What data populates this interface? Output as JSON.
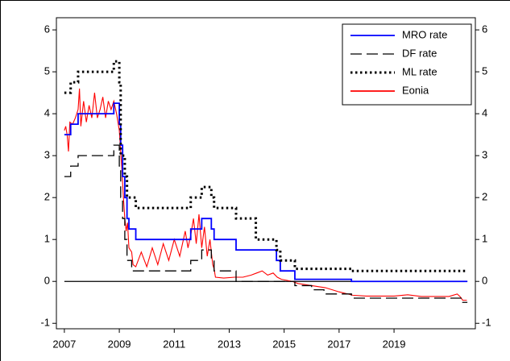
{
  "chart_data": {
    "type": "line",
    "xlim": [
      2006.71,
      2021.96
    ],
    "xticks": [
      2007,
      2009,
      2011,
      2013,
      2015,
      2017,
      2019
    ],
    "ylim": [
      -1.13,
      6.29
    ],
    "yticks": [
      -1,
      0,
      1,
      2,
      3,
      4,
      5,
      6
    ],
    "y2lim": [
      -1.13,
      6.29
    ],
    "y2ticks": [
      -1,
      0,
      1,
      2,
      3,
      4,
      5,
      6
    ],
    "reference_line": 0,
    "legend": "top-right",
    "series": [
      {
        "name": "MRO rate",
        "color": "#0000ff",
        "style": "solid",
        "x": [
          2007.0,
          2007.23,
          2007.23,
          2007.5,
          2007.5,
          2008.8,
          2008.8,
          2009.0,
          2009.0,
          2009.05,
          2009.05,
          2009.12,
          2009.12,
          2009.2,
          2009.2,
          2009.28,
          2009.28,
          2009.35,
          2009.35,
          2009.6,
          2009.6,
          2011.6,
          2011.6,
          2012.0,
          2012.0,
          2012.35,
          2012.35,
          2012.45,
          2012.45,
          2013.25,
          2013.25,
          2014.72,
          2014.72,
          2014.86,
          2014.86,
          2015.39,
          2015.39,
          2017.45,
          2017.45,
          2021.67
        ],
        "values": [
          3.5,
          3.5,
          3.75,
          3.75,
          4.0,
          4.0,
          4.25,
          4.25,
          3.75,
          3.75,
          3.25,
          3.25,
          2.5,
          2.5,
          2.0,
          2.0,
          1.5,
          1.5,
          1.25,
          1.25,
          1.0,
          1.0,
          1.25,
          1.25,
          1.5,
          1.5,
          1.25,
          1.25,
          1.0,
          1.0,
          0.75,
          0.75,
          0.5,
          0.5,
          0.25,
          0.25,
          0.05,
          0.05,
          0.0,
          0.0
        ]
      },
      {
        "name": "DF rate",
        "color": "#000000",
        "style": "dashed",
        "x": [
          2007.0,
          2007.23,
          2007.23,
          2007.5,
          2007.5,
          2008.8,
          2008.8,
          2009.0,
          2009.0,
          2009.05,
          2009.05,
          2009.12,
          2009.12,
          2009.2,
          2009.2,
          2009.28,
          2009.28,
          2009.45,
          2009.45,
          2011.6,
          2011.6,
          2012.0,
          2012.0,
          2012.35,
          2012.35,
          2012.45,
          2012.45,
          2013.25,
          2013.25,
          2015.39,
          2015.39,
          2016.0,
          2016.0,
          2016.45,
          2016.45,
          2017.45,
          2017.45,
          2021.5,
          2021.5,
          2021.67
        ],
        "values": [
          2.5,
          2.5,
          2.75,
          2.75,
          3.0,
          3.0,
          3.25,
          3.25,
          2.75,
          2.75,
          2.0,
          2.0,
          1.5,
          1.5,
          1.0,
          1.0,
          0.5,
          0.5,
          0.25,
          0.25,
          0.5,
          0.5,
          0.75,
          0.75,
          0.5,
          0.5,
          0.25,
          0.25,
          0.0,
          0.0,
          -0.1,
          -0.1,
          -0.2,
          -0.2,
          -0.3,
          -0.3,
          -0.4,
          -0.4,
          -0.5,
          -0.5
        ]
      },
      {
        "name": "ML rate",
        "color": "#000000",
        "style": "dotted",
        "x": [
          2007.0,
          2007.23,
          2007.23,
          2007.5,
          2007.5,
          2008.8,
          2008.8,
          2009.0,
          2009.0,
          2009.05,
          2009.05,
          2009.2,
          2009.2,
          2009.28,
          2009.28,
          2009.35,
          2009.35,
          2009.6,
          2009.6,
          2011.6,
          2011.6,
          2012.0,
          2012.0,
          2012.35,
          2012.35,
          2012.45,
          2012.45,
          2013.25,
          2013.25,
          2013.97,
          2013.97,
          2014.72,
          2014.72,
          2014.86,
          2014.86,
          2015.39,
          2015.39,
          2017.45,
          2017.45,
          2021.67
        ],
        "values": [
          4.5,
          4.5,
          4.75,
          4.75,
          5.0,
          5.0,
          5.25,
          5.25,
          4.75,
          4.75,
          3.0,
          3.0,
          2.5,
          2.5,
          2.0,
          2.0,
          2.0,
          2.0,
          1.75,
          1.75,
          2.0,
          2.0,
          2.25,
          2.25,
          2.0,
          2.0,
          1.75,
          1.75,
          1.5,
          1.5,
          1.0,
          1.0,
          0.75,
          0.75,
          0.5,
          0.5,
          0.3,
          0.3,
          0.25,
          0.25
        ]
      },
      {
        "name": "Eonia",
        "color": "#ff0000",
        "style": "solid",
        "x": [
          2007.0,
          2007.05,
          2007.1,
          2007.15,
          2007.2,
          2007.3,
          2007.4,
          2007.5,
          2007.55,
          2007.6,
          2007.7,
          2007.8,
          2007.9,
          2008.0,
          2008.1,
          2008.2,
          2008.3,
          2008.4,
          2008.5,
          2008.6,
          2008.7,
          2008.8,
          2008.9,
          2009.0,
          2009.05,
          2009.1,
          2009.15,
          2009.2,
          2009.25,
          2009.3,
          2009.35,
          2009.45,
          2009.5,
          2009.6,
          2009.8,
          2010.0,
          2010.2,
          2010.4,
          2010.6,
          2010.8,
          2011.0,
          2011.2,
          2011.4,
          2011.5,
          2011.6,
          2011.7,
          2011.8,
          2011.9,
          2012.0,
          2012.1,
          2012.2,
          2012.3,
          2012.4,
          2012.45,
          2012.5,
          2012.8,
          2013.2,
          2013.5,
          2013.8,
          2014.0,
          2014.2,
          2014.4,
          2014.6,
          2014.75,
          2014.9,
          2015.3,
          2015.5,
          2016.0,
          2016.5,
          2017.0,
          2017.5,
          2018.0,
          2019.0,
          2019.5,
          2020.0,
          2021.0,
          2021.3,
          2021.4,
          2021.5,
          2021.65
        ],
        "values": [
          3.6,
          3.7,
          3.5,
          3.1,
          3.8,
          3.75,
          3.9,
          4.1,
          4.6,
          3.7,
          4.3,
          3.8,
          4.2,
          3.9,
          4.5,
          3.9,
          4.1,
          4.4,
          3.9,
          4.3,
          4.1,
          4.3,
          4.0,
          3.6,
          3.1,
          2.6,
          2.0,
          1.5,
          1.2,
          1.4,
          0.8,
          0.7,
          0.4,
          0.35,
          0.7,
          0.35,
          0.8,
          0.4,
          0.9,
          0.5,
          1.0,
          0.6,
          1.2,
          0.8,
          1.1,
          1.5,
          0.9,
          1.6,
          0.8,
          1.3,
          0.6,
          1.0,
          0.4,
          0.3,
          0.1,
          0.08,
          0.1,
          0.1,
          0.15,
          0.2,
          0.25,
          0.15,
          0.2,
          0.1,
          0.05,
          0.0,
          -0.05,
          -0.1,
          -0.15,
          -0.25,
          -0.33,
          -0.35,
          -0.35,
          -0.32,
          -0.36,
          -0.36,
          -0.3,
          -0.36,
          -0.45,
          -0.45
        ]
      }
    ]
  }
}
